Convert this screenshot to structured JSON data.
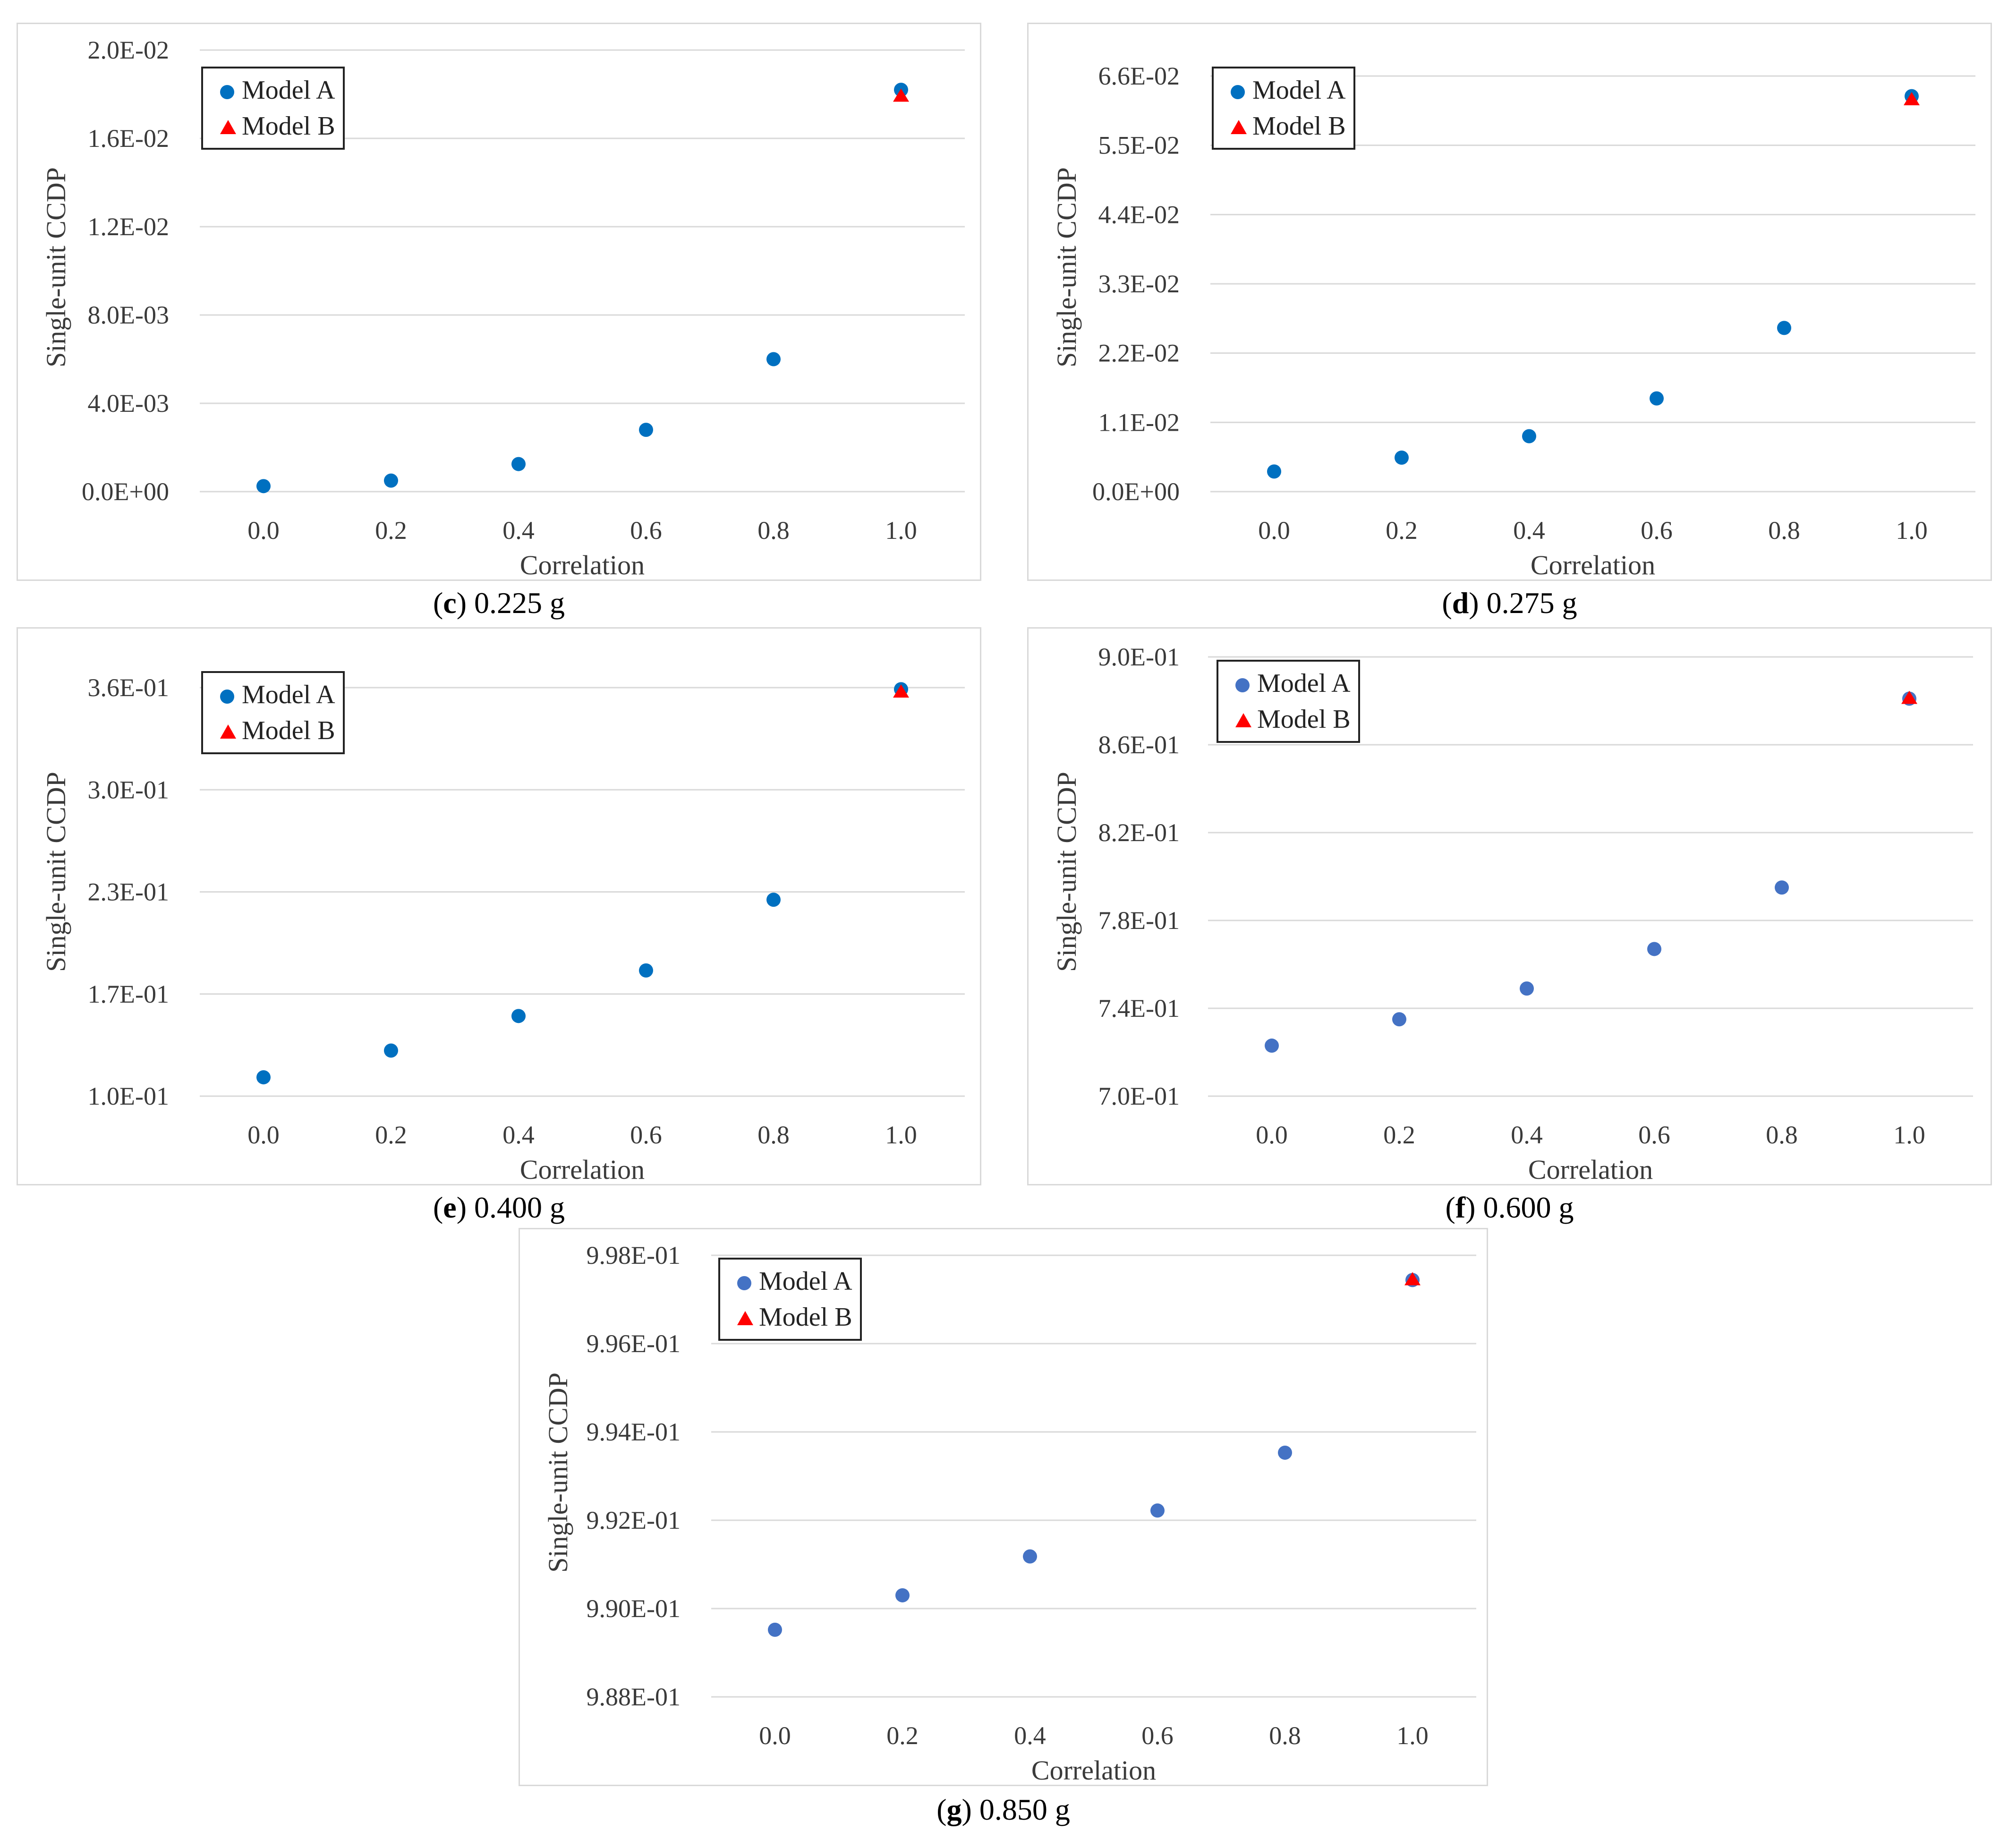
{
  "colors": {
    "model_a": "#0070c0",
    "model_a_alt": "#4472c4",
    "model_b": "#ff0000",
    "grid": "#d9d9d9"
  },
  "chart_data": [
    {
      "id": "c",
      "type": "scatter",
      "caption_letter": "c",
      "caption_text": " 0.225 g",
      "xlabel": "Correlation",
      "ylabel": "Single-unit CCDP",
      "x_ticks": [
        "0.0",
        "0.2",
        "0.4",
        "0.6",
        "0.8",
        "1.0"
      ],
      "y_ticks": [
        "0.0E+00",
        "4.0E-03",
        "8.0E-03",
        "1.2E-02",
        "1.6E-02",
        "2.0E-02"
      ],
      "ylim": [
        0,
        0.02
      ],
      "xlim": [
        0,
        1.0
      ],
      "legend": [
        "Model A",
        "Model B"
      ],
      "series": [
        {
          "name": "Model A",
          "marker": "circle",
          "color": "#0070c0",
          "x": [
            0.0,
            0.2,
            0.4,
            0.6,
            0.8,
            1.0
          ],
          "y": [
            0.00025,
            0.0005,
            0.00125,
            0.0028,
            0.006,
            0.0182
          ]
        },
        {
          "name": "Model B",
          "marker": "triangle",
          "color": "#ff0000",
          "x": [
            1.0
          ],
          "y": [
            0.0179
          ]
        }
      ]
    },
    {
      "id": "d",
      "type": "scatter",
      "caption_letter": "d",
      "caption_text": " 0.275 g",
      "xlabel": "Correlation",
      "ylabel": "Single-unit CCDP",
      "x_ticks": [
        "0.0",
        "0.2",
        "0.4",
        "0.6",
        "0.8",
        "1.0"
      ],
      "y_ticks": [
        "0.0E+00",
        "1.1E-02",
        "2.2E-02",
        "3.3E-02",
        "4.4E-02",
        "5.5E-02",
        "6.6E-02"
      ],
      "ylim": [
        0,
        0.066
      ],
      "xlim": [
        0,
        1.0
      ],
      "legend": [
        "Model A",
        "Model B"
      ],
      "series": [
        {
          "name": "Model A",
          "marker": "circle",
          "color": "#0070c0",
          "x": [
            0.0,
            0.2,
            0.4,
            0.6,
            0.8,
            1.0
          ],
          "y": [
            0.0032,
            0.0054,
            0.0088,
            0.0148,
            0.026,
            0.0628
          ]
        },
        {
          "name": "Model B",
          "marker": "triangle",
          "color": "#ff0000",
          "x": [
            1.0
          ],
          "y": [
            0.0622
          ]
        }
      ]
    },
    {
      "id": "e",
      "type": "scatter",
      "caption_letter": "e",
      "caption_text": " 0.400 g",
      "xlabel": "Correlation",
      "ylabel": "Single-unit CCDP",
      "x_ticks": [
        "0.0",
        "0.2",
        "0.4",
        "0.6",
        "0.8",
        "1.0"
      ],
      "y_ticks": [
        "1.0E-01",
        "1.7E-01",
        "2.3E-01",
        "3.0E-01",
        "3.6E-01"
      ],
      "ylim": [
        0.1,
        0.36
      ],
      "xlim": [
        0,
        1.0
      ],
      "legend": [
        "Model A",
        "Model B"
      ],
      "series": [
        {
          "name": "Model A",
          "marker": "circle",
          "color": "#0070c0",
          "x": [
            0.0,
            0.2,
            0.4,
            0.6,
            0.8,
            1.0
          ],
          "y": [
            0.112,
            0.129,
            0.151,
            0.18,
            0.225,
            0.359
          ]
        },
        {
          "name": "Model B",
          "marker": "triangle",
          "color": "#ff0000",
          "x": [
            1.0
          ],
          "y": [
            0.357
          ]
        }
      ]
    },
    {
      "id": "f",
      "type": "scatter",
      "caption_letter": "f",
      "caption_text": " 0.600 g",
      "xlabel": "Correlation",
      "ylabel": "Single-unit CCDP",
      "x_ticks": [
        "0.0",
        "0.2",
        "0.4",
        "0.6",
        "0.8",
        "1.0"
      ],
      "y_ticks": [
        "7.0E-01",
        "7.4E-01",
        "7.8E-01",
        "8.2E-01",
        "8.6E-01",
        "9.0E-01"
      ],
      "ylim": [
        0.7,
        0.9
      ],
      "xlim": [
        0,
        1.0
      ],
      "legend": [
        "Model A",
        "Model B"
      ],
      "series": [
        {
          "name": "Model A",
          "marker": "circle",
          "color": "#4472c4",
          "x": [
            0.0,
            0.2,
            0.4,
            0.6,
            0.8,
            1.0
          ],
          "y": [
            0.723,
            0.735,
            0.749,
            0.767,
            0.795,
            0.881
          ]
        },
        {
          "name": "Model B",
          "marker": "triangle",
          "color": "#ff0000",
          "x": [
            1.0
          ],
          "y": [
            0.881
          ]
        }
      ]
    },
    {
      "id": "g",
      "type": "scatter",
      "caption_letter": "g",
      "caption_text": " 0.850 g",
      "xlabel": "Correlation",
      "ylabel": "Single-unit CCDP",
      "x_ticks": [
        "0.0",
        "0.2",
        "0.4",
        "0.6",
        "0.8",
        "1.0"
      ],
      "y_ticks": [
        "9.88E-01",
        "9.90E-01",
        "9.92E-01",
        "9.94E-01",
        "9.96E-01",
        "9.98E-01"
      ],
      "ylim": [
        0.988,
        0.998
      ],
      "xlim": [
        0,
        1.0
      ],
      "legend": [
        "Model A",
        "Model B"
      ],
      "series": [
        {
          "name": "Model A",
          "marker": "circle",
          "color": "#4472c4",
          "x": [
            0.0,
            0.2,
            0.4,
            0.6,
            0.8,
            1.0
          ],
          "y": [
            0.98952,
            0.9903,
            0.99118,
            0.99222,
            0.99353,
            0.99744
          ]
        },
        {
          "name": "Model B",
          "marker": "triangle",
          "color": "#ff0000",
          "x": [
            1.0
          ],
          "y": [
            0.99744
          ]
        }
      ]
    }
  ]
}
